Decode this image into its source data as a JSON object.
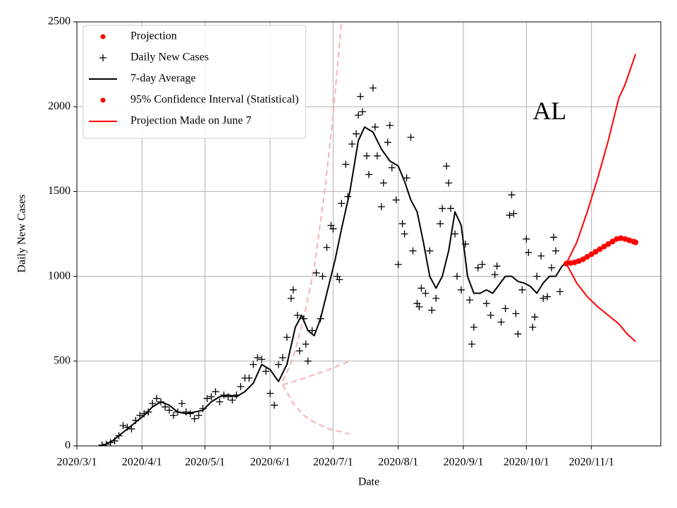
{
  "chart_data": {
    "type": "line",
    "xlabel": "Date",
    "ylabel": "Daily New Cases",
    "annotation": {
      "text": "AL",
      "x": "2020-10-04",
      "y": 1960
    },
    "xlim": [
      "2020-03-01",
      "2020-12-04"
    ],
    "ylim": [
      0,
      2500
    ],
    "xticks": [
      {
        "value": "2020-03-01",
        "label": "2020/3/1"
      },
      {
        "value": "2020-04-01",
        "label": "2020/4/1"
      },
      {
        "value": "2020-05-01",
        "label": "2020/5/1"
      },
      {
        "value": "2020-06-01",
        "label": "2020/6/1"
      },
      {
        "value": "2020-07-01",
        "label": "2020/7/1"
      },
      {
        "value": "2020-08-01",
        "label": "2020/8/1"
      },
      {
        "value": "2020-09-01",
        "label": "2020/9/1"
      },
      {
        "value": "2020-10-01",
        "label": "2020/10/1"
      },
      {
        "value": "2020-11-01",
        "label": "2020/11/1"
      }
    ],
    "yticks": [
      0,
      500,
      1000,
      1500,
      2000,
      2500
    ],
    "grid": true,
    "legend": {
      "loc": "upper left",
      "entries": [
        {
          "label": "Projection",
          "marker": "dot",
          "color": "#ff0000"
        },
        {
          "label": "Daily New Cases",
          "marker": "plus",
          "color": "#000000"
        },
        {
          "label": "7-day Average",
          "marker": "line",
          "color": "#000000"
        },
        {
          "label": "95% Confidence Interval (Statistical)",
          "marker": "dot",
          "color": "#ff0000"
        },
        {
          "label": "Projection Made on June 7",
          "marker": "line",
          "color": "#ff0000"
        }
      ]
    },
    "series": [
      {
        "style": "dot",
        "color": "#ff0000",
        "x": [
          "2020-10-20",
          "2020-10-22",
          "2020-10-24",
          "2020-10-26",
          "2020-10-28",
          "2020-10-30",
          "2020-11-01",
          "2020-11-03",
          "2020-11-05",
          "2020-11-07",
          "2020-11-09",
          "2020-11-11",
          "2020-11-13",
          "2020-11-15",
          "2020-11-17",
          "2020-11-19",
          "2020-11-21",
          "2020-11-22"
        ],
        "values": [
          1075,
          1078,
          1082,
          1090,
          1100,
          1115,
          1130,
          1145,
          1160,
          1175,
          1190,
          1205,
          1220,
          1225,
          1220,
          1212,
          1205,
          1200
        ]
      },
      {
        "style": "plus",
        "color": "#000000",
        "x": [
          "2020-03-13",
          "2020-03-15",
          "2020-03-17",
          "2020-03-19",
          "2020-03-21",
          "2020-03-23",
          "2020-03-25",
          "2020-03-27",
          "2020-03-29",
          "2020-03-31",
          "2020-04-02",
          "2020-04-04",
          "2020-04-06",
          "2020-04-08",
          "2020-04-10",
          "2020-04-12",
          "2020-04-14",
          "2020-04-16",
          "2020-04-18",
          "2020-04-20",
          "2020-04-22",
          "2020-04-24",
          "2020-04-26",
          "2020-04-28",
          "2020-04-30",
          "2020-05-02",
          "2020-05-04",
          "2020-05-06",
          "2020-05-08",
          "2020-05-10",
          "2020-05-12",
          "2020-05-14",
          "2020-05-16",
          "2020-05-18",
          "2020-05-20",
          "2020-05-22",
          "2020-05-24",
          "2020-05-26",
          "2020-05-28",
          "2020-05-30",
          "2020-06-01",
          "2020-06-03",
          "2020-06-05",
          "2020-06-07",
          "2020-06-09",
          "2020-06-11",
          "2020-06-12",
          "2020-06-14",
          "2020-06-15",
          "2020-06-17",
          "2020-06-18",
          "2020-06-19",
          "2020-06-21",
          "2020-06-23",
          "2020-06-25",
          "2020-06-26",
          "2020-06-28",
          "2020-06-30",
          "2020-07-01",
          "2020-07-03",
          "2020-07-04",
          "2020-07-05",
          "2020-07-07",
          "2020-07-08",
          "2020-07-10",
          "2020-07-12",
          "2020-07-13",
          "2020-07-14",
          "2020-07-15",
          "2020-07-17",
          "2020-07-18",
          "2020-07-20",
          "2020-07-21",
          "2020-07-22",
          "2020-07-24",
          "2020-07-25",
          "2020-07-27",
          "2020-07-28",
          "2020-07-29",
          "2020-07-31",
          "2020-08-01",
          "2020-08-03",
          "2020-08-04",
          "2020-08-05",
          "2020-08-07",
          "2020-08-08",
          "2020-08-10",
          "2020-08-11",
          "2020-08-12",
          "2020-08-14",
          "2020-08-16",
          "2020-08-17",
          "2020-08-19",
          "2020-08-21",
          "2020-08-22",
          "2020-08-24",
          "2020-08-25",
          "2020-08-26",
          "2020-08-28",
          "2020-08-29",
          "2020-08-31",
          "2020-09-02",
          "2020-09-04",
          "2020-09-05",
          "2020-09-06",
          "2020-09-08",
          "2020-09-10",
          "2020-09-12",
          "2020-09-14",
          "2020-09-16",
          "2020-09-17",
          "2020-09-19",
          "2020-09-21",
          "2020-09-23",
          "2020-09-24",
          "2020-09-25",
          "2020-09-26",
          "2020-09-27",
          "2020-09-29",
          "2020-10-01",
          "2020-10-02",
          "2020-10-04",
          "2020-10-05",
          "2020-10-06",
          "2020-10-08",
          "2020-10-09",
          "2020-10-11",
          "2020-10-13",
          "2020-10-14",
          "2020-10-15",
          "2020-10-17"
        ],
        "values": [
          5,
          10,
          20,
          30,
          60,
          120,
          110,
          100,
          150,
          180,
          190,
          200,
          250,
          280,
          260,
          230,
          210,
          180,
          200,
          250,
          200,
          190,
          160,
          180,
          220,
          280,
          290,
          320,
          260,
          300,
          290,
          270,
          300,
          350,
          400,
          400,
          480,
          520,
          510,
          440,
          310,
          240,
          480,
          520,
          640,
          870,
          920,
          770,
          560,
          750,
          600,
          500,
          680,
          1020,
          750,
          1000,
          1170,
          1300,
          1280,
          1000,
          980,
          1430,
          1660,
          1470,
          1780,
          1840,
          1950,
          2060,
          1970,
          1710,
          1600,
          2110,
          1880,
          1710,
          1410,
          1550,
          1790,
          1890,
          1640,
          1450,
          1070,
          1310,
          1250,
          1580,
          1820,
          1150,
          840,
          820,
          930,
          900,
          1150,
          800,
          870,
          1310,
          1400,
          1650,
          1550,
          1400,
          1250,
          1000,
          920,
          1190,
          860,
          600,
          700,
          1050,
          1070,
          840,
          770,
          1010,
          1060,
          730,
          810,
          1360,
          1480,
          1370,
          780,
          660,
          920,
          1220,
          1140,
          700,
          760,
          1000,
          1120,
          870,
          880,
          1050,
          1230,
          1150,
          910
        ]
      },
      {
        "style": "line",
        "color": "#000000",
        "x": [
          "2020-03-13",
          "2020-03-18",
          "2020-03-23",
          "2020-03-28",
          "2020-04-02",
          "2020-04-06",
          "2020-04-10",
          "2020-04-14",
          "2020-04-18",
          "2020-04-22",
          "2020-04-26",
          "2020-04-30",
          "2020-05-04",
          "2020-05-08",
          "2020-05-12",
          "2020-05-16",
          "2020-05-20",
          "2020-05-24",
          "2020-05-28",
          "2020-06-01",
          "2020-06-05",
          "2020-06-09",
          "2020-06-13",
          "2020-06-16",
          "2020-06-19",
          "2020-06-22",
          "2020-06-25",
          "2020-06-28",
          "2020-07-02",
          "2020-07-05",
          "2020-07-09",
          "2020-07-13",
          "2020-07-16",
          "2020-07-20",
          "2020-07-24",
          "2020-07-28",
          "2020-08-01",
          "2020-08-04",
          "2020-08-07",
          "2020-08-10",
          "2020-08-13",
          "2020-08-16",
          "2020-08-19",
          "2020-08-22",
          "2020-08-25",
          "2020-08-28",
          "2020-08-31",
          "2020-09-03",
          "2020-09-06",
          "2020-09-09",
          "2020-09-12",
          "2020-09-15",
          "2020-09-18",
          "2020-09-21",
          "2020-09-24",
          "2020-09-27",
          "2020-09-30",
          "2020-10-03",
          "2020-10-06",
          "2020-10-09",
          "2020-10-12",
          "2020-10-15",
          "2020-10-18",
          "2020-10-20"
        ],
        "values": [
          0,
          30,
          80,
          130,
          180,
          230,
          260,
          240,
          200,
          190,
          200,
          210,
          260,
          290,
          300,
          290,
          320,
          370,
          480,
          450,
          380,
          480,
          700,
          770,
          680,
          650,
          750,
          900,
          1100,
          1280,
          1500,
          1800,
          1880,
          1850,
          1750,
          1680,
          1650,
          1560,
          1450,
          1380,
          1200,
          1000,
          930,
          1000,
          1150,
          1380,
          1300,
          1000,
          900,
          900,
          920,
          900,
          950,
          1000,
          1000,
          970,
          960,
          940,
          900,
          960,
          1000,
          1000,
          1060,
          1080
        ]
      },
      {
        "style": "line",
        "color": "#ff0000",
        "x": [
          "2020-10-20",
          "2020-10-25",
          "2020-10-30",
          "2020-11-04",
          "2020-11-09",
          "2020-11-14",
          "2020-11-17",
          "2020-11-22"
        ],
        "values": [
          1075,
          1200,
          1380,
          1580,
          1800,
          2050,
          2130,
          2310
        ]
      },
      {
        "style": "line",
        "color": "#ff0000",
        "x": [
          "2020-10-20",
          "2020-10-25",
          "2020-10-30",
          "2020-11-04",
          "2020-11-09",
          "2020-11-14",
          "2020-11-18",
          "2020-11-22"
        ],
        "values": [
          1075,
          960,
          880,
          820,
          770,
          720,
          660,
          615
        ]
      },
      {
        "style": "dashed",
        "color": "#f7b3b3",
        "x": [
          "2020-06-07",
          "2020-06-12",
          "2020-06-17",
          "2020-06-22",
          "2020-06-27",
          "2020-07-01",
          "2020-07-05"
        ],
        "values": [
          380,
          520,
          750,
          1050,
          1500,
          1950,
          2500
        ]
      },
      {
        "style": "dashed",
        "color": "#f7b3b3",
        "x": [
          "2020-06-07",
          "2020-06-15",
          "2020-06-22",
          "2020-06-29",
          "2020-07-09"
        ],
        "values": [
          360,
          390,
          420,
          450,
          500
        ]
      },
      {
        "style": "dashed",
        "color": "#f7b3b3",
        "x": [
          "2020-06-07",
          "2020-06-12",
          "2020-06-17",
          "2020-06-22",
          "2020-06-29",
          "2020-07-09"
        ],
        "values": [
          360,
          250,
          180,
          140,
          100,
          70
        ]
      }
    ]
  }
}
